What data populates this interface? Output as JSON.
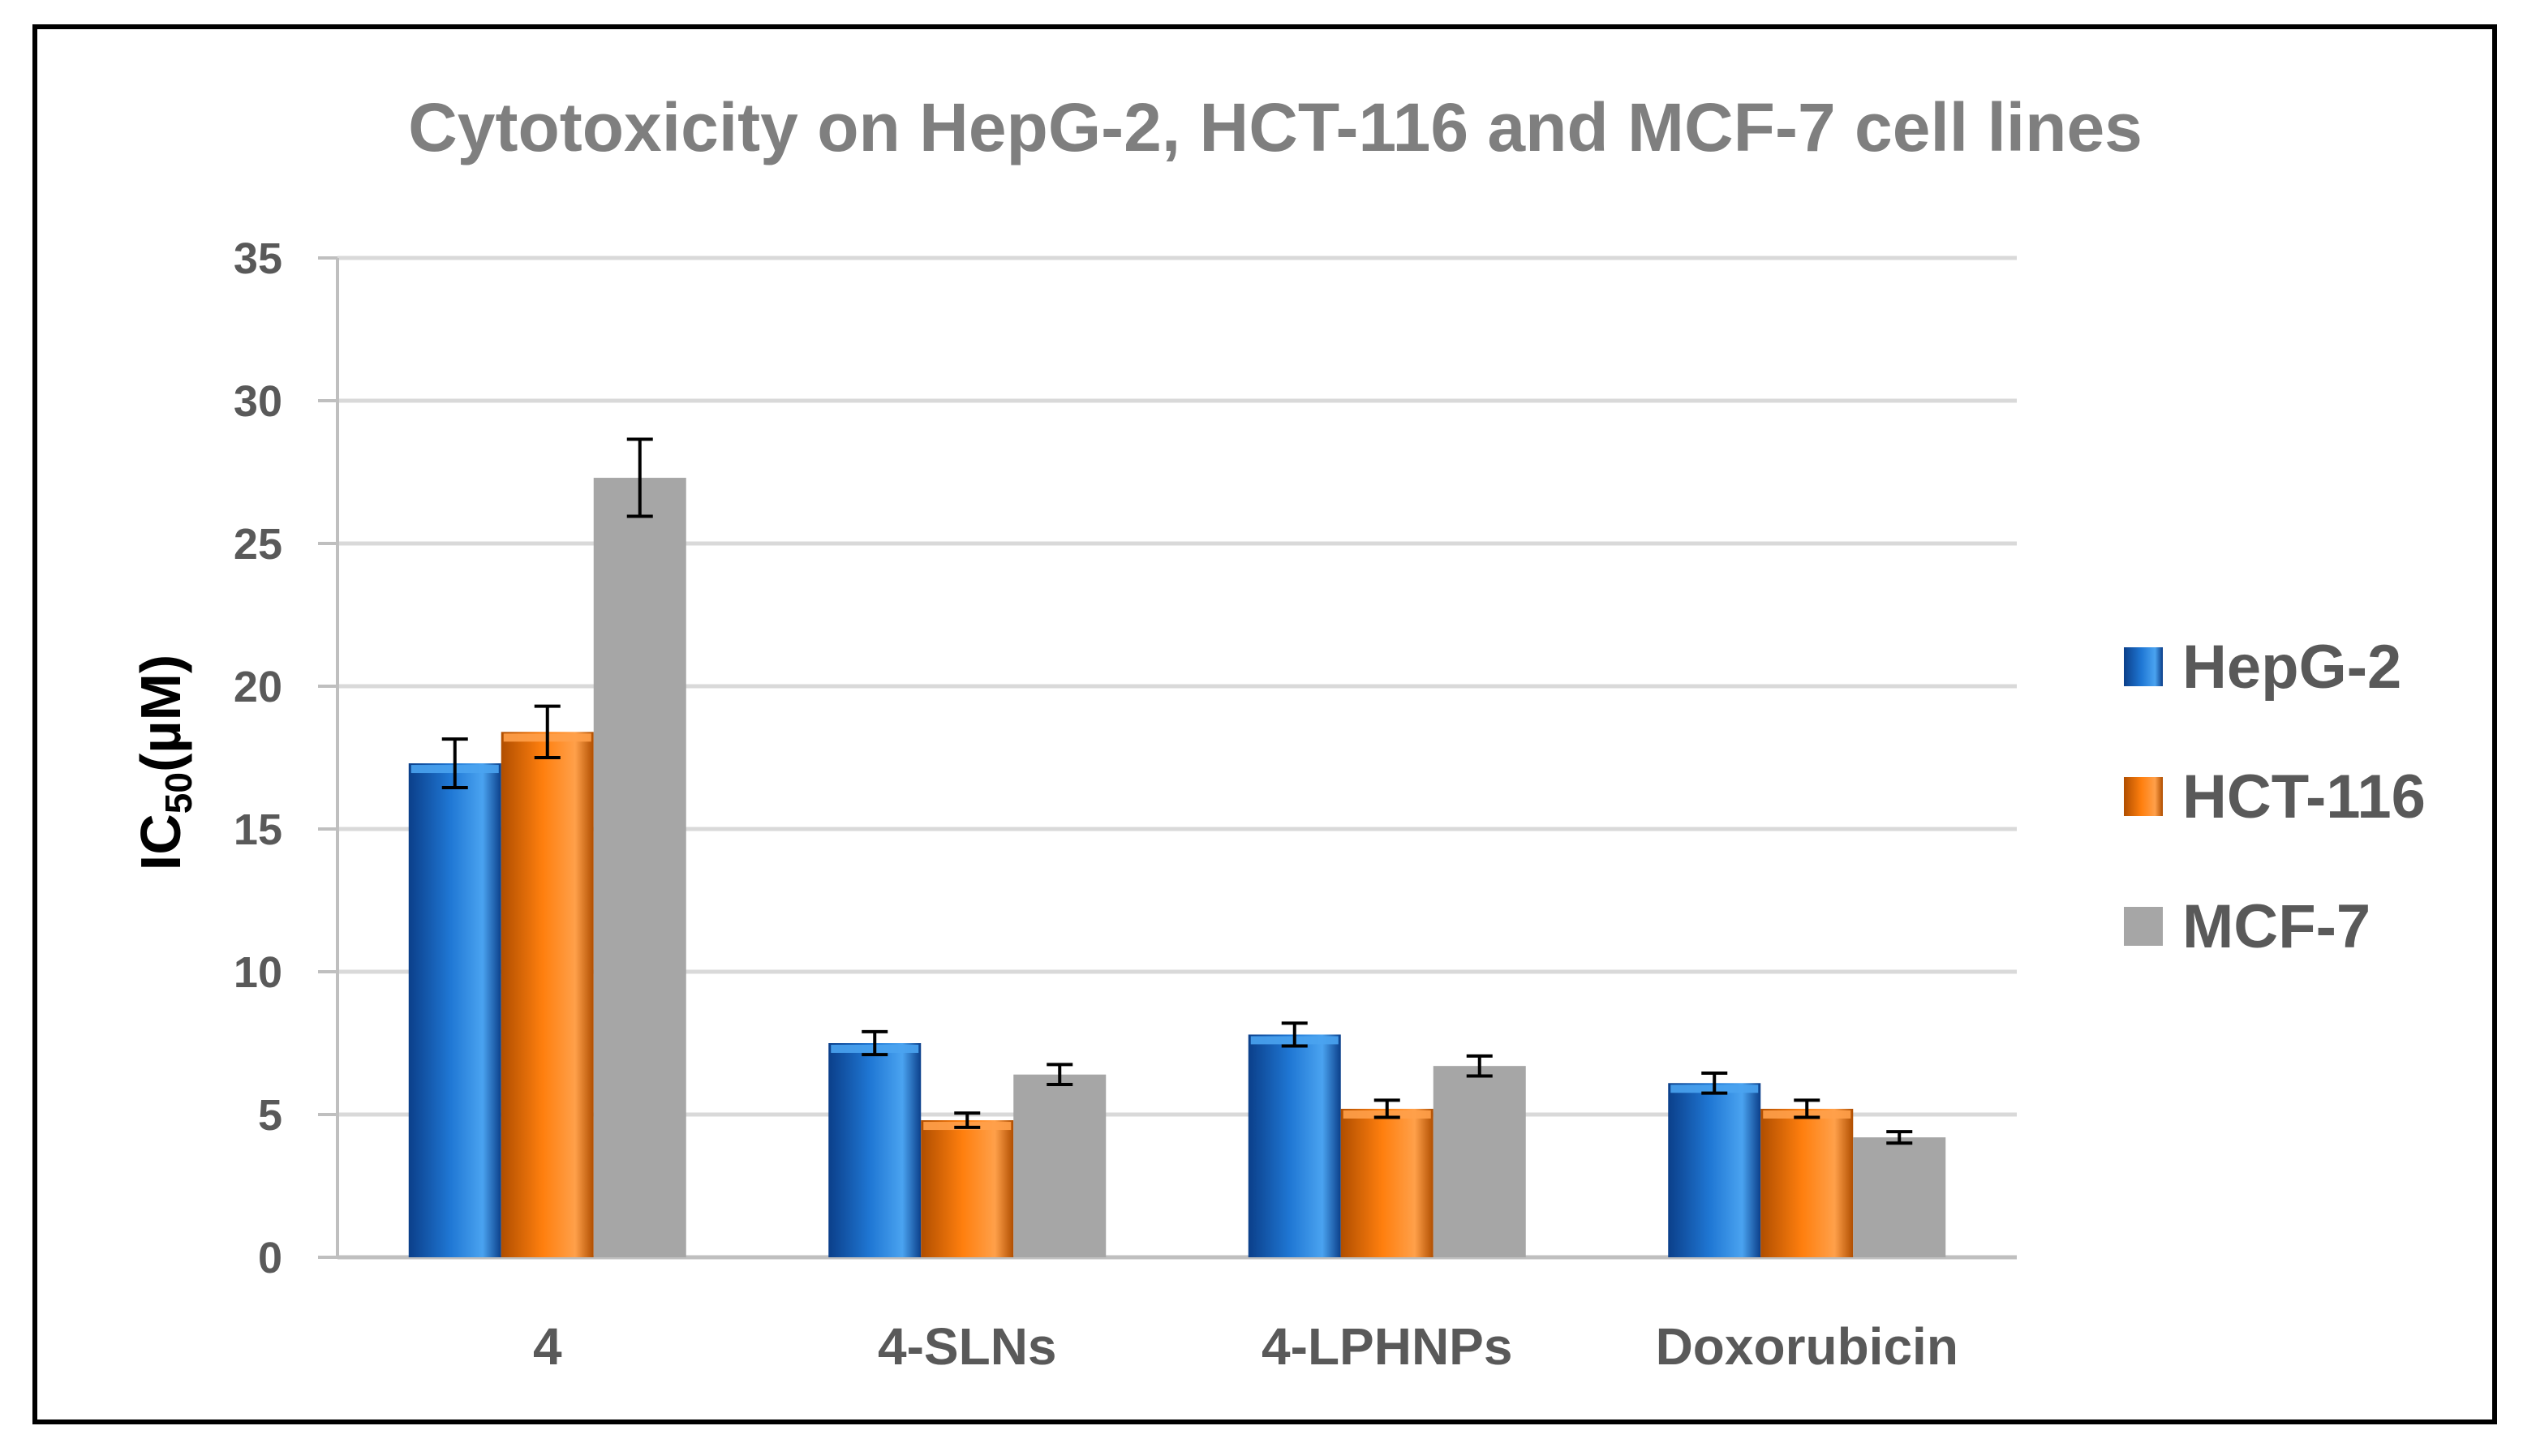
{
  "chart_data": {
    "type": "bar",
    "title": "Cytotoxicity on HepG-2, HCT-116 and MCF-7 cell lines",
    "xlabel": "",
    "ylabel_main": "IC",
    "ylabel_sub": "50",
    "ylabel_unit": "(µM)",
    "ylim": [
      0,
      35
    ],
    "yticks": [
      0,
      5,
      10,
      15,
      20,
      25,
      30,
      35
    ],
    "grid": true,
    "legend_position": "right",
    "categories": [
      "4",
      "4-SLNs",
      "4-LPHNPs",
      "Doxorubicin"
    ],
    "series": [
      {
        "name": "HepG-2",
        "color": "#1f77d4",
        "dark": "#0b3f8a",
        "light": "#4aa3f0",
        "values": [
          17.3,
          7.5,
          7.8,
          6.1
        ],
        "errors": [
          0.85,
          0.4,
          0.4,
          0.35
        ]
      },
      {
        "name": "HCT-116",
        "color": "#ff7f0e",
        "dark": "#b04e00",
        "light": "#ffa04a",
        "values": [
          18.4,
          4.8,
          5.2,
          5.2
        ],
        "errors": [
          0.9,
          0.25,
          0.3,
          0.3
        ]
      },
      {
        "name": "MCF-7",
        "color": "#a6a6a6",
        "dark": "#a6a6a6",
        "light": "#a6a6a6",
        "values": [
          27.3,
          6.4,
          6.7,
          4.2
        ],
        "errors": [
          1.35,
          0.35,
          0.35,
          0.2
        ]
      }
    ]
  }
}
